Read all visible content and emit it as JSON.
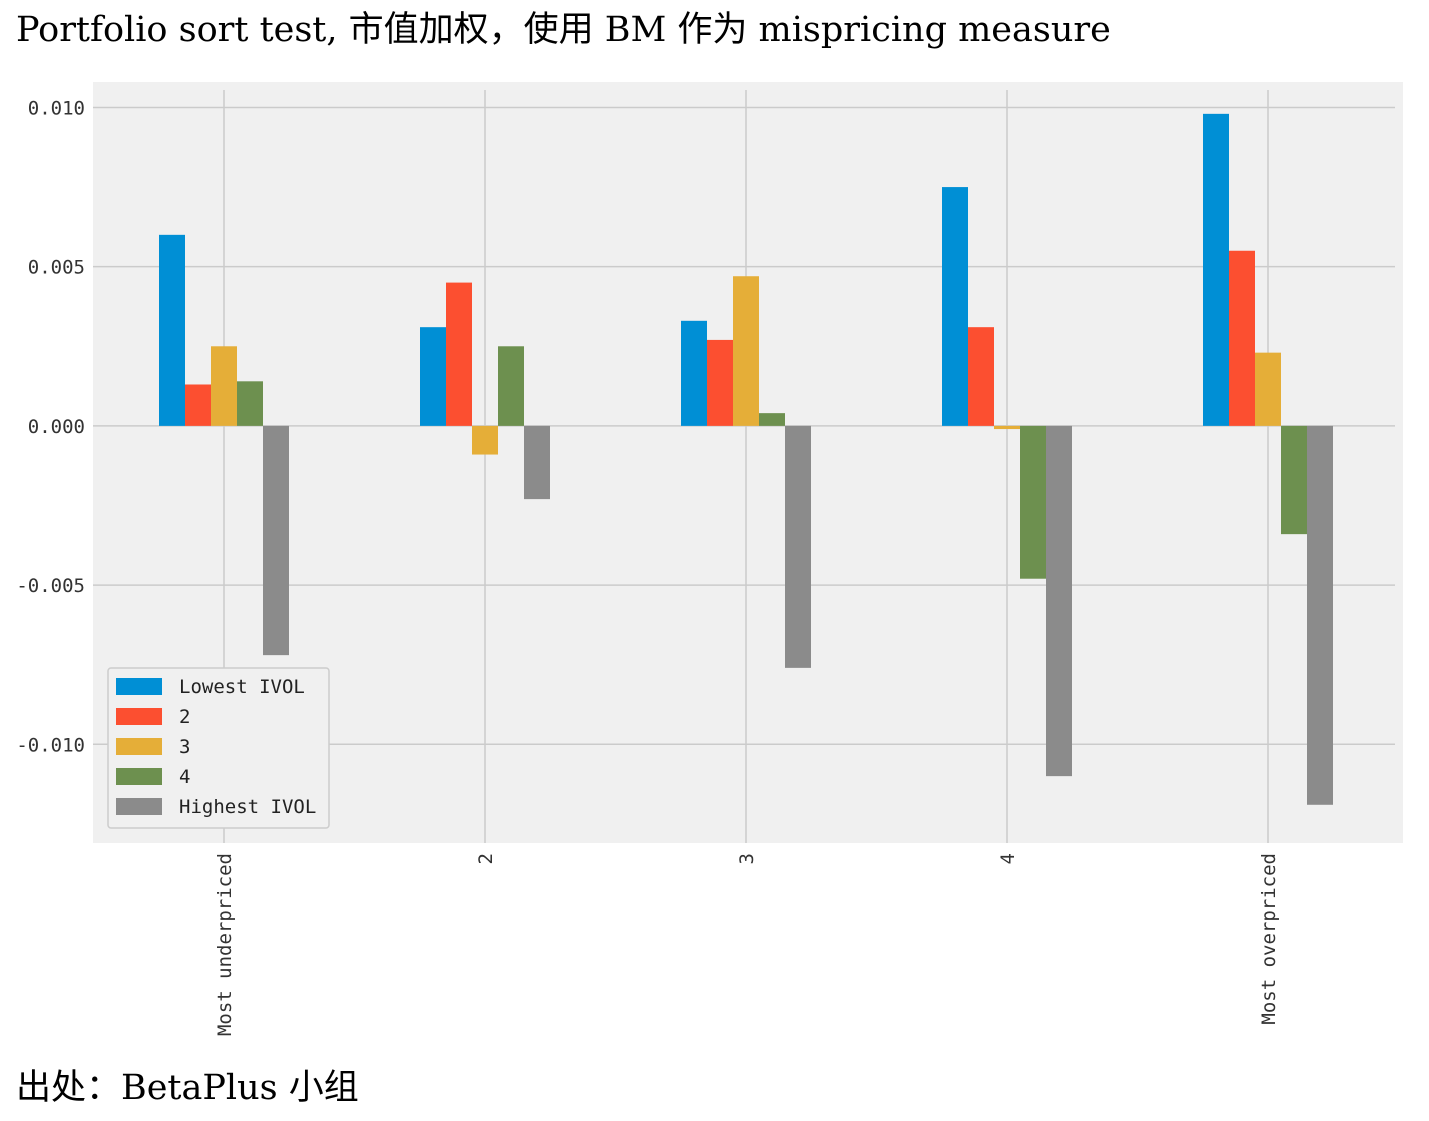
{
  "page": {
    "title": "Portfolio sort test, 市值加权，使用 BM 作为 mispricing measure",
    "source": "出处：BetaPlus 小组"
  },
  "colors": {
    "plot_background": "#f0f0f0",
    "grid": "#cbcbcb",
    "legend_background": "#f0f0f0",
    "legend_border": "#cccccc"
  },
  "chart_data": {
    "type": "bar",
    "title": "",
    "xlabel": "",
    "ylabel": "",
    "categories": [
      "Most underpriced",
      "2",
      "3",
      "4",
      "Most overpriced"
    ],
    "series": [
      {
        "name": "Lowest IVOL",
        "color": "#008fd5",
        "values": [
          0.006,
          0.0031,
          0.0033,
          0.0075,
          0.0098
        ]
      },
      {
        "name": "2",
        "color": "#fc4f30",
        "values": [
          0.0013,
          0.0045,
          0.0027,
          0.0031,
          0.0055
        ]
      },
      {
        "name": "3",
        "color": "#e5ae38",
        "values": [
          0.0025,
          -0.0009,
          0.0047,
          -0.0001,
          0.0023
        ]
      },
      {
        "name": "4",
        "color": "#6d904f",
        "values": [
          0.0014,
          0.0025,
          0.0004,
          -0.0048,
          -0.0034
        ]
      },
      {
        "name": "Highest IVOL",
        "color": "#8b8b8b",
        "values": [
          -0.0072,
          -0.0023,
          -0.0076,
          -0.011,
          -0.0119
        ]
      }
    ],
    "ylim": [
      -0.0131,
      0.0108
    ],
    "yticks": [
      0.01,
      0.005,
      0.0,
      -0.005,
      -0.01
    ],
    "ytick_labels": [
      "0.010",
      "0.005",
      "0.000",
      "-0.005",
      "-0.010"
    ],
    "xtick_rotation": "vertical",
    "grid": true,
    "legend_position": "lower-left"
  }
}
